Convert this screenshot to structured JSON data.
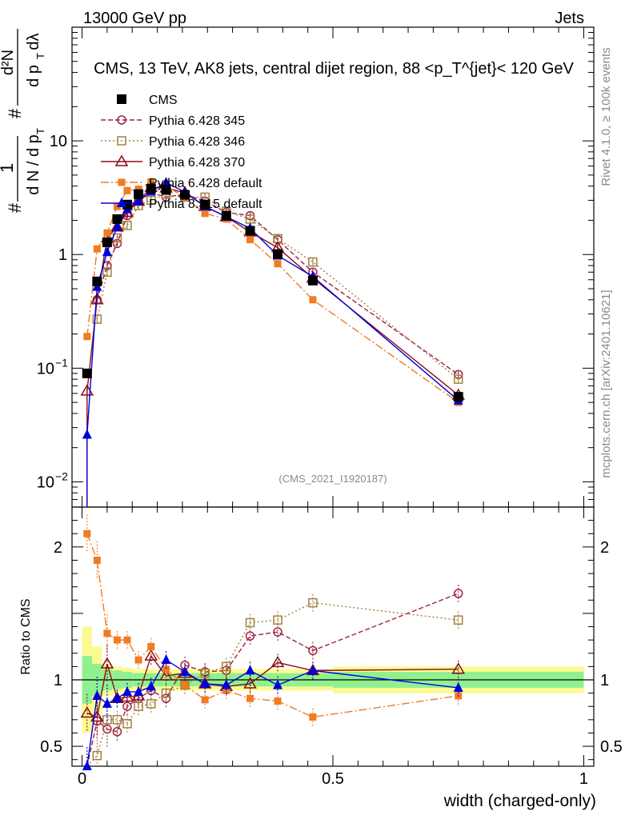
{
  "header": {
    "energy": "13000 GeV pp",
    "category": "Jets"
  },
  "side_labels": {
    "rivet": "Rivet 4.1.0, ≥ 100k events",
    "mcplots": "mcplots.cern.ch [arXiv:2401.10621]"
  },
  "colors": {
    "cms": "#000000",
    "p345": "#a0213f",
    "p346": "#a08040",
    "p370": "#8b0d14",
    "p6def": "#f07b22",
    "p8def": "#0000dd",
    "band_green": "#90f090",
    "band_yellow": "#fafa90"
  },
  "chart_data": {
    "type": "line",
    "title": "CMS, 13 TeV, AK8 jets, central dijet region, 88 <p_T^{jet}< 120 GeV",
    "watermark": "(CMS_2021_I1920187)",
    "xlabel": "width (charged-only)",
    "ylabel": "1/dN/dp_T  dN²/dp_T dλ",
    "ratio_ylabel": "Ratio to CMS",
    "xlim": [
      -0.02,
      1.02
    ],
    "ylim": [
      0.006,
      100
    ],
    "yscale": "log",
    "ratio_ylim": [
      0.35,
      2.3
    ],
    "x_ticks": [
      {
        "value": 0,
        "label": "0"
      },
      {
        "value": 0.5,
        "label": "0.5"
      },
      {
        "value": 1,
        "label": "1"
      }
    ],
    "y_ticks": [
      {
        "value": 0.01,
        "label": "10",
        "sup": "−2"
      },
      {
        "value": 0.1,
        "label": "10",
        "sup": "−1"
      },
      {
        "value": 1,
        "label": "1",
        "sup": ""
      },
      {
        "value": 10,
        "label": "10",
        "sup": ""
      }
    ],
    "ratio_ticks": [
      {
        "value": 0.5,
        "label": "0.5"
      },
      {
        "value": 1,
        "label": "1"
      },
      {
        "value": 2,
        "label": "2"
      }
    ],
    "bins_edges": [
      0,
      0.02,
      0.04,
      0.06,
      0.08,
      0.1,
      0.125,
      0.15,
      0.185,
      0.225,
      0.265,
      0.31,
      0.36,
      0.42,
      0.5,
      1.0
    ],
    "x": [
      0.01,
      0.03,
      0.05,
      0.07,
      0.09,
      0.1125,
      0.1375,
      0.1675,
      0.205,
      0.245,
      0.2875,
      0.335,
      0.39,
      0.46,
      0.75
    ],
    "band_inner": [
      0.18,
      0.12,
      0.08,
      0.07,
      0.06,
      0.05,
      0.05,
      0.05,
      0.05,
      0.05,
      0.05,
      0.05,
      0.05,
      0.05,
      0.06
    ],
    "band_outer": [
      0.4,
      0.25,
      0.12,
      0.1,
      0.09,
      0.08,
      0.08,
      0.08,
      0.08,
      0.08,
      0.08,
      0.08,
      0.08,
      0.08,
      0.1
    ],
    "series": [
      {
        "key": "cms",
        "name": "CMS",
        "marker": "square_filled",
        "dash": "",
        "values": [
          0.09,
          0.58,
          1.28,
          2.05,
          2.75,
          3.4,
          3.8,
          3.7,
          3.35,
          2.75,
          2.2,
          1.62,
          1.01,
          0.59,
          0.056
        ],
        "ratio": [
          1,
          1,
          1,
          1,
          1,
          1,
          1,
          1,
          1,
          1,
          1,
          1,
          1,
          1,
          1
        ]
      },
      {
        "key": "p345",
        "name": "Pythia 6.428 345",
        "marker": "circle_open",
        "dash": "6,3",
        "values": [
          0.0,
          0.4,
          0.8,
          1.25,
          2.2,
          2.95,
          3.5,
          3.2,
          3.4,
          2.95,
          2.35,
          2.2,
          1.35,
          0.7,
          0.088
        ],
        "ratio": [
          0.3,
          0.69,
          0.63,
          0.61,
          0.8,
          0.86,
          0.92,
          0.86,
          1.11,
          1.06,
          1.07,
          1.33,
          1.36,
          1.22,
          1.65
        ]
      },
      {
        "key": "p346",
        "name": "Pythia 6.428 346",
        "marker": "square_open",
        "dash": "2,3",
        "values": [
          0.0,
          0.27,
          0.7,
          1.4,
          1.8,
          2.7,
          3.0,
          3.4,
          3.2,
          3.2,
          2.4,
          2.05,
          1.38,
          0.86,
          0.08
        ],
        "ratio": [
          0.3,
          0.43,
          0.7,
          0.7,
          0.67,
          0.8,
          0.82,
          0.9,
          0.96,
          1.05,
          1.1,
          1.43,
          1.45,
          1.58,
          1.45
        ]
      },
      {
        "key": "p370",
        "name": "Pythia 6.428 370",
        "marker": "triangle_open",
        "dash": "",
        "values": [
          0.063,
          0.4,
          1.4,
          1.75,
          2.35,
          2.95,
          3.9,
          3.85,
          3.5,
          2.65,
          2.15,
          1.58,
          1.15,
          0.62,
          0.058
        ],
        "ratio": [
          0.75,
          0.72,
          1.12,
          0.86,
          0.87,
          0.88,
          1.18,
          1.03,
          1.05,
          0.97,
          0.95,
          0.97,
          1.13,
          1.07,
          1.08
        ]
      },
      {
        "key": "p6def",
        "name": "Pythia 6.428 default",
        "marker": "square_filled_orange",
        "dash": "10,3,2,3",
        "values": [
          0.19,
          1.12,
          1.55,
          2.65,
          3.65,
          3.75,
          4.35,
          4.0,
          3.2,
          2.3,
          2.05,
          1.35,
          0.83,
          0.4,
          0.05
        ],
        "ratio": [
          2.1,
          1.9,
          1.35,
          1.3,
          1.3,
          1.15,
          1.25,
          1.08,
          0.96,
          0.85,
          0.92,
          0.86,
          0.84,
          0.72,
          0.88
        ]
      },
      {
        "key": "p8def",
        "name": "Pythia 8.315 default",
        "marker": "triangle_filled",
        "dash": "",
        "values": [
          0.026,
          0.52,
          1.05,
          1.75,
          2.5,
          2.95,
          3.6,
          4.3,
          3.55,
          2.65,
          2.15,
          1.7,
          0.98,
          0.64,
          0.052
        ],
        "ratio": [
          0.35,
          0.88,
          0.82,
          0.86,
          0.91,
          0.91,
          0.95,
          1.15,
          1.06,
          0.97,
          0.96,
          1.07,
          0.96,
          1.07,
          0.94
        ]
      }
    ]
  }
}
